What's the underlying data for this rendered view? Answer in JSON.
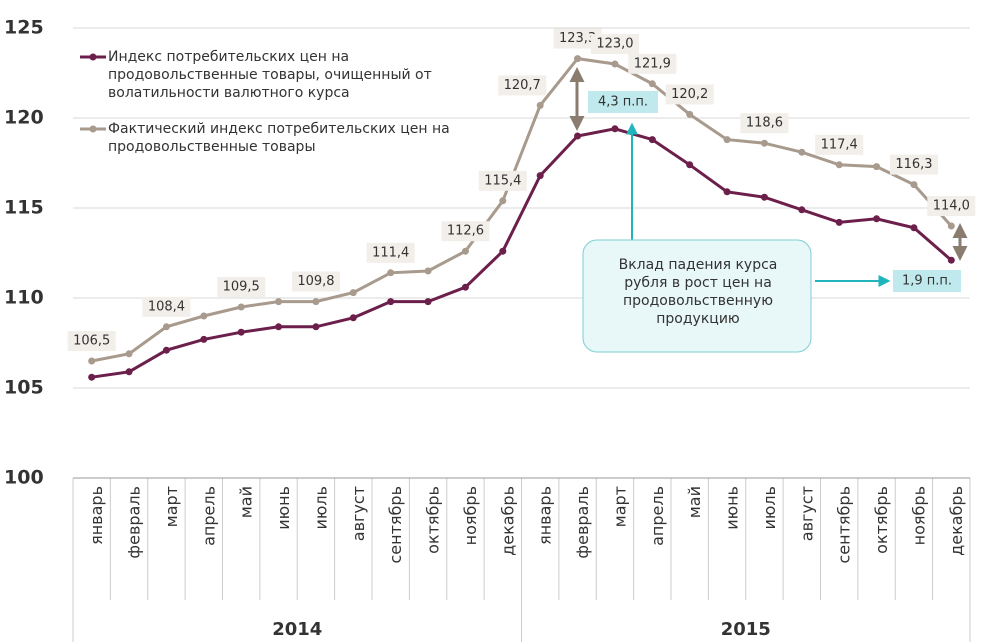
{
  "chart_data": {
    "type": "line",
    "categories": [
      "январь",
      "февраль",
      "март",
      "апрель",
      "май",
      "июнь",
      "июль",
      "август",
      "сентябрь",
      "октябрь",
      "ноябрь",
      "декабрь",
      "январь",
      "февраль",
      "март",
      "апрель",
      "май",
      "июнь",
      "июль",
      "август",
      "сентябрь",
      "октябрь",
      "ноябрь",
      "декабрь"
    ],
    "year_groups": [
      "2014",
      "2015"
    ],
    "series": [
      {
        "name": "Индекс потребительских цен на продовольственные товары, очищенный от волатильности валютного курса",
        "color": "#6b1f4a",
        "values": [
          105.6,
          105.9,
          107.1,
          107.7,
          108.1,
          108.4,
          108.4,
          108.9,
          109.8,
          109.8,
          110.6,
          112.6,
          116.8,
          119.0,
          119.4,
          118.8,
          117.4,
          115.9,
          115.6,
          114.9,
          114.2,
          114.4,
          113.9,
          112.1
        ]
      },
      {
        "name": "Фактический индекс потребительских цен на продовольственные товары",
        "color": "#a89a8c",
        "values": [
          106.5,
          106.9,
          108.4,
          109.0,
          109.5,
          109.8,
          109.8,
          110.3,
          111.4,
          111.5,
          112.6,
          115.4,
          120.7,
          123.3,
          123.0,
          121.9,
          120.2,
          118.8,
          118.6,
          118.1,
          117.4,
          117.3,
          116.3,
          114.0
        ],
        "value_labels": [
          "106,5",
          null,
          "108,4",
          null,
          "109,5",
          null,
          "109,8",
          null,
          "111,4",
          null,
          "112,6",
          "115,4",
          "120,7",
          "123,3",
          "123,0",
          "121,9",
          "120,2",
          null,
          "118,6",
          null,
          "117,4",
          null,
          "116,3",
          "114,0"
        ]
      }
    ],
    "ylim": [
      100,
      125
    ],
    "yticks": [
      100,
      105,
      110,
      115,
      120,
      125
    ],
    "grid": true,
    "annotations": [
      "4,3 п.п.",
      "1,9 п.п.",
      "Вклад падения курса рубля в  рост цен на продовольственную продукцию"
    ]
  }
}
